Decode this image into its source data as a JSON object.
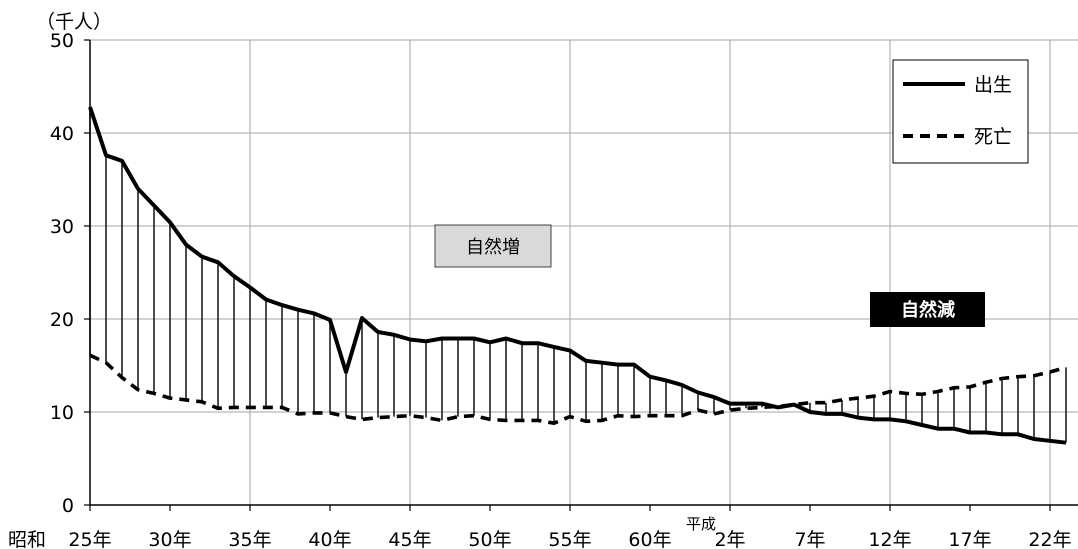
{
  "chart_data": {
    "type": "line",
    "ylabel": "（千人）",
    "ylim": [
      0,
      50
    ],
    "yticks": [
      0,
      10,
      20,
      30,
      40,
      50
    ],
    "x": [
      25,
      26,
      27,
      28,
      29,
      30,
      31,
      32,
      33,
      34,
      35,
      36,
      37,
      38,
      39,
      40,
      41,
      42,
      43,
      44,
      45,
      46,
      47,
      48,
      49,
      50,
      51,
      52,
      53,
      54,
      55,
      56,
      57,
      58,
      59,
      60,
      61,
      62,
      63,
      1,
      2,
      3,
      4,
      5,
      6,
      7,
      8,
      9,
      10,
      11,
      12,
      13,
      14,
      15,
      16,
      17,
      18,
      19,
      20,
      21,
      22,
      23
    ],
    "xticks": [
      {
        "era": "昭和",
        "label": "25年"
      },
      {
        "label": "30年"
      },
      {
        "label": "35年"
      },
      {
        "label": "40年"
      },
      {
        "label": "45年"
      },
      {
        "label": "50年"
      },
      {
        "label": "55年"
      },
      {
        "label": "60年"
      },
      {
        "era": "平成",
        "label": "2年"
      },
      {
        "label": "7年"
      },
      {
        "label": "12年"
      },
      {
        "label": "17年"
      },
      {
        "label": "22年"
      }
    ],
    "series": [
      {
        "name": "出生",
        "dashed": false,
        "color": "#000000",
        "values": [
          42.8,
          37.6,
          37.0,
          34.0,
          32.2,
          30.4,
          28.0,
          26.7,
          26.1,
          24.6,
          23.4,
          22.1,
          21.5,
          21.0,
          20.6,
          19.9,
          14.3,
          20.1,
          18.6,
          18.3,
          17.8,
          17.6,
          17.9,
          17.9,
          17.9,
          17.5,
          17.9,
          17.4,
          17.4,
          17.0,
          16.6,
          15.5,
          15.3,
          15.1,
          15.1,
          13.8,
          13.4,
          12.9,
          12.1,
          11.6,
          10.9,
          10.9,
          10.9,
          10.5,
          10.8,
          10.0,
          9.8,
          9.8,
          9.4,
          9.2,
          9.2,
          9.0,
          8.6,
          8.2,
          8.2,
          7.8,
          7.8,
          7.6,
          7.6,
          7.1,
          6.9,
          6.7
        ]
      },
      {
        "name": "死亡",
        "dashed": true,
        "color": "#000000",
        "values": [
          16.1,
          15.3,
          13.7,
          12.4,
          12.0,
          11.5,
          11.3,
          11.1,
          10.4,
          10.5,
          10.5,
          10.5,
          10.5,
          9.8,
          9.9,
          9.9,
          9.5,
          9.2,
          9.4,
          9.5,
          9.6,
          9.4,
          9.1,
          9.5,
          9.6,
          9.2,
          9.1,
          9.1,
          9.1,
          8.8,
          9.5,
          9.0,
          9.1,
          9.6,
          9.5,
          9.6,
          9.6,
          9.6,
          10.2,
          9.8,
          10.2,
          10.4,
          10.5,
          10.6,
          10.8,
          11.0,
          11.0,
          11.3,
          11.5,
          11.7,
          12.2,
          12.0,
          11.9,
          12.2,
          12.6,
          12.7,
          13.2,
          13.6,
          13.8,
          13.9,
          14.3,
          14.8
        ]
      }
    ],
    "high_low_lines": true,
    "grid": true,
    "legend": "top-right",
    "colors": {
      "gridline": "#a6a6a6",
      "axis": "#000000"
    },
    "annotations": [
      {
        "text": "自然増",
        "fill": "#d9d9d9",
        "text_color": "#000000"
      },
      {
        "text": "自然減",
        "fill": "#000000",
        "text_color": "#ffffff"
      }
    ]
  }
}
